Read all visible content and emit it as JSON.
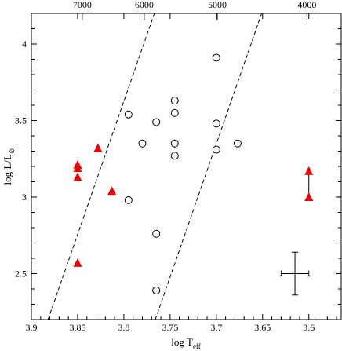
{
  "chart_data": {
    "type": "scatter",
    "title": "",
    "xlabel": {
      "main": "log T",
      "sub": "eff"
    },
    "ylabel": {
      "main": "log L/L",
      "sub": "⊙"
    },
    "xlim": [
      3.9,
      3.565
    ],
    "ylim": [
      2.2,
      4.2
    ],
    "x_reversed": true,
    "x_ticks": [
      3.9,
      3.85,
      3.8,
      3.75,
      3.7,
      3.65,
      3.6
    ],
    "x_tick_labels": [
      "3.9",
      "3.85",
      "3.8",
      "3.75",
      "3.7",
      "3.65",
      "3.6"
    ],
    "y_ticks": [
      2.5,
      3,
      3.5,
      4
    ],
    "y_tick_labels": [
      "2.5",
      "3",
      "3.5",
      "4"
    ],
    "top_axis": {
      "values": [
        3.845,
        3.778,
        3.699,
        3.602
      ],
      "labels": [
        "7000",
        "6000",
        "5000",
        "4000"
      ]
    },
    "series": [
      {
        "marker": "open-circle",
        "color": "#000000",
        "points": [
          [
            3.795,
            3.54
          ],
          [
            3.78,
            3.35
          ],
          [
            3.765,
            3.49
          ],
          [
            3.745,
            3.63
          ],
          [
            3.745,
            3.55
          ],
          [
            3.745,
            3.35
          ],
          [
            3.745,
            3.27
          ],
          [
            3.7,
            3.91
          ],
          [
            3.7,
            3.48
          ],
          [
            3.7,
            3.31
          ],
          [
            3.677,
            3.35
          ],
          [
            3.795,
            2.98
          ],
          [
            3.765,
            2.76
          ],
          [
            3.765,
            2.39
          ]
        ]
      },
      {
        "marker": "filled-triangle",
        "color": "#ee0000",
        "points": [
          [
            3.85,
            3.21
          ],
          [
            3.85,
            3.19
          ],
          [
            3.85,
            3.13
          ],
          [
            3.828,
            3.32
          ],
          [
            3.813,
            3.04
          ],
          [
            3.85,
            2.57
          ],
          [
            3.6,
            3.17
          ],
          [
            3.6,
            3.0
          ]
        ]
      }
    ],
    "connectors": [
      {
        "from": [
          3.6,
          3.17
        ],
        "to": [
          3.6,
          3.0
        ]
      }
    ],
    "dashed_lines": [
      {
        "x": [
          3.882,
          3.767
        ],
        "y": [
          2.2,
          4.2
        ]
      },
      {
        "x": [
          3.766,
          3.651
        ],
        "y": [
          2.2,
          4.2
        ]
      }
    ],
    "error_bar": {
      "x": 3.615,
      "y": 2.5,
      "x_err": 0.015,
      "y_err": 0.14
    },
    "grid": false
  }
}
